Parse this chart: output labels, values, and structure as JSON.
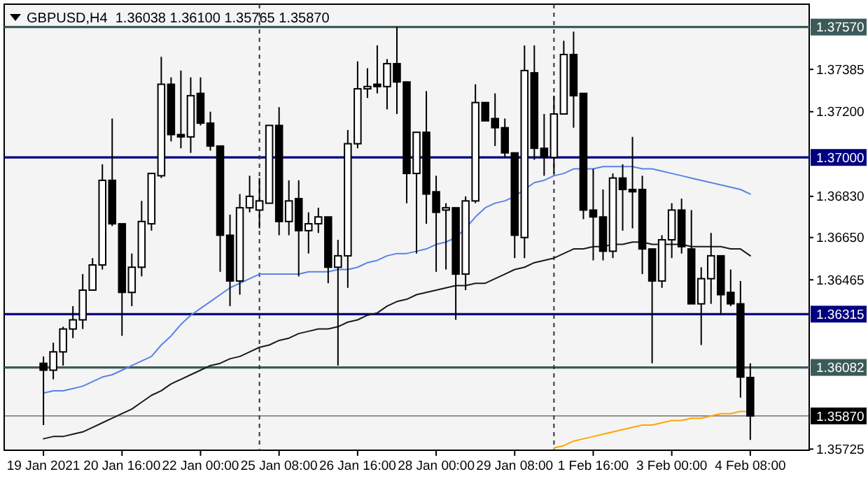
{
  "chart_data": {
    "type": "candlestick",
    "title": "GBPUSD,H4  1.36038 1.36100 1.35765 1.35870",
    "color": "#000000",
    "categories": [
      "19 Jan 2021",
      null,
      null,
      null,
      null,
      null,
      null,
      null,
      "20 Jan 16:00",
      null,
      null,
      null,
      null,
      null,
      null,
      null,
      "22 Jan 00:00",
      null,
      null,
      null,
      null,
      null,
      null,
      null,
      "25 Jan 08:00",
      null,
      null,
      null,
      null,
      null,
      null,
      null,
      "26 Jan 16:00",
      null,
      null,
      null,
      null,
      null,
      null,
      null,
      "28 Jan 00:00",
      null,
      null,
      null,
      null,
      null,
      null,
      null,
      "29 Jan 08:00",
      null,
      null,
      null,
      null,
      null,
      null,
      null,
      "1 Feb 16:00",
      null,
      null,
      null,
      null,
      null,
      null,
      null,
      "3 Feb 00:00",
      null,
      null,
      null,
      null,
      null,
      null,
      null,
      "4 Feb 08:00"
    ],
    "ohlc": [
      [
        1.361,
        1.3613,
        1.3583,
        1.3607
      ],
      [
        1.3607,
        1.3619,
        1.3603,
        1.3615
      ],
      [
        1.3615,
        1.3626,
        1.3609,
        1.3625
      ],
      [
        1.3625,
        1.3635,
        1.3621,
        1.3629
      ],
      [
        1.3629,
        1.3649,
        1.3625,
        1.3642
      ],
      [
        1.3642,
        1.3656,
        1.3642,
        1.3653
      ],
      [
        1.3653,
        1.3697,
        1.3651,
        1.369
      ],
      [
        1.369,
        1.3717,
        1.367,
        1.3671
      ],
      [
        1.3671,
        1.3671,
        1.3622,
        1.3641
      ],
      [
        1.3641,
        1.3658,
        1.3635,
        1.3652
      ],
      [
        1.3652,
        1.3681,
        1.3648,
        1.3672
      ],
      [
        1.3671,
        1.3693,
        1.3668,
        1.3693
      ],
      [
        1.3692,
        1.3744,
        1.3691,
        1.3732
      ],
      [
        1.3732,
        1.3735,
        1.3707,
        1.371
      ],
      [
        1.371,
        1.3738,
        1.3704,
        1.3709
      ],
      [
        1.3709,
        1.3735,
        1.3702,
        1.3727
      ],
      [
        1.3728,
        1.3735,
        1.3714,
        1.3715
      ],
      [
        1.3715,
        1.372,
        1.3703,
        1.3705
      ],
      [
        1.3705,
        1.3705,
        1.365,
        1.3666
      ],
      [
        1.3666,
        1.3675,
        1.3635,
        1.3646
      ],
      [
        1.3646,
        1.3684,
        1.364,
        1.3678
      ],
      [
        1.3678,
        1.3692,
        1.3676,
        1.3683
      ],
      [
        1.3677,
        1.3691,
        1.3669,
        1.3681
      ],
      [
        1.368,
        1.3714,
        1.368,
        1.3714
      ],
      [
        1.3714,
        1.3722,
        1.3666,
        1.3672
      ],
      [
        1.3672,
        1.369,
        1.3666,
        1.3681
      ],
      [
        1.3682,
        1.369,
        1.3648,
        1.3668
      ],
      [
        1.3668,
        1.3676,
        1.3658,
        1.3671
      ],
      [
        1.3671,
        1.3678,
        1.3667,
        1.3674
      ],
      [
        1.3674,
        1.3674,
        1.3645,
        1.3652
      ],
      [
        1.3652,
        1.3664,
        1.3609,
        1.3657
      ],
      [
        1.3657,
        1.3712,
        1.3643,
        1.3706
      ],
      [
        1.3706,
        1.3742,
        1.3704,
        1.373
      ],
      [
        1.373,
        1.3739,
        1.3726,
        1.3731
      ],
      [
        1.3732,
        1.3749,
        1.3728,
        1.3731
      ],
      [
        1.3731,
        1.3743,
        1.3721,
        1.3741
      ],
      [
        1.3741,
        1.3757,
        1.3719,
        1.3733
      ],
      [
        1.3733,
        1.3733,
        1.368,
        1.3693
      ],
      [
        1.3693,
        1.3711,
        1.3658,
        1.3711
      ],
      [
        1.3711,
        1.3729,
        1.3671,
        1.3684
      ],
      [
        1.3685,
        1.3692,
        1.365,
        1.3676
      ],
      [
        1.3677,
        1.368,
        1.3651,
        1.3678
      ],
      [
        1.3678,
        1.3678,
        1.3629,
        1.3649
      ],
      [
        1.3649,
        1.3683,
        1.3642,
        1.3681
      ],
      [
        1.3681,
        1.3732,
        1.368,
        1.3724
      ],
      [
        1.3724,
        1.3724,
        1.3716,
        1.3716
      ],
      [
        1.3717,
        1.3728,
        1.3705,
        1.3713
      ],
      [
        1.3713,
        1.3717,
        1.37,
        1.3702
      ],
      [
        1.3702,
        1.3702,
        1.3656,
        1.3666
      ],
      [
        1.3665,
        1.3749,
        1.3656,
        1.3738
      ],
      [
        1.3737,
        1.3749,
        1.3699,
        1.3704
      ],
      [
        1.3704,
        1.3719,
        1.3692,
        1.37
      ],
      [
        1.37,
        1.3727,
        1.3693,
        1.3719
      ],
      [
        1.3719,
        1.3751,
        1.3719,
        1.3745
      ],
      [
        1.3745,
        1.3755,
        1.3713,
        1.3727
      ],
      [
        1.3728,
        1.3728,
        1.3673,
        1.3677
      ],
      [
        1.3677,
        1.3695,
        1.3655,
        1.3674
      ],
      [
        1.3674,
        1.3686,
        1.3655,
        1.3659
      ],
      [
        1.3659,
        1.3693,
        1.3656,
        1.3691
      ],
      [
        1.3691,
        1.3697,
        1.3668,
        1.3686
      ],
      [
        1.3686,
        1.3709,
        1.3669,
        1.3685
      ],
      [
        1.3686,
        1.3692,
        1.3649,
        1.366
      ],
      [
        1.366,
        1.366,
        1.361,
        1.3646
      ],
      [
        1.3646,
        1.3666,
        1.3643,
        1.3664
      ],
      [
        1.3664,
        1.368,
        1.3656,
        1.3677
      ],
      [
        1.3677,
        1.3682,
        1.3658,
        1.3661
      ],
      [
        1.366,
        1.3677,
        1.3636,
        1.3636
      ],
      [
        1.3636,
        1.3652,
        1.3618,
        1.3647
      ],
      [
        1.3647,
        1.3667,
        1.3636,
        1.3657
      ],
      [
        1.3657,
        1.3657,
        1.3631,
        1.364
      ],
      [
        1.3641,
        1.3651,
        1.3635,
        1.3636
      ],
      [
        1.3636,
        1.3646,
        1.3595,
        1.3604
      ],
      [
        1.36038,
        1.361,
        1.35765,
        1.3587
      ]
    ],
    "series": [
      {
        "type": "line",
        "color": "#5b82e6",
        "values": [
          1.3597,
          1.3598,
          1.3598,
          1.3599,
          1.36,
          1.3602,
          1.3604,
          1.3605,
          1.3607,
          1.3609,
          1.3611,
          1.3613,
          1.3618,
          1.3622,
          1.3627,
          1.3631,
          1.3634,
          1.3637,
          1.364,
          1.3643,
          1.3645,
          1.3647,
          1.3649,
          1.3649,
          1.3649,
          1.3649,
          1.3649,
          1.365,
          1.365,
          1.365,
          1.3651,
          1.3651,
          1.3652,
          1.3654,
          1.3655,
          1.3657,
          1.3658,
          1.3658,
          1.3659,
          1.366,
          1.3662,
          1.3663,
          1.3665,
          1.3669,
          1.3674,
          1.3678,
          1.368,
          1.3681,
          1.3683,
          1.3686,
          1.3689,
          1.369,
          1.3692,
          1.3693,
          1.3695,
          1.3695,
          1.3695,
          1.3696,
          1.3696,
          1.3696,
          1.3696,
          1.3695,
          1.3695,
          1.3694,
          1.3693,
          1.3692,
          1.3691,
          1.369,
          1.3689,
          1.3688,
          1.3687,
          1.3686,
          1.3684
        ]
      },
      {
        "type": "line",
        "color": "#1a1a1a",
        "values": [
          1.3577,
          1.3578,
          1.3578,
          1.3579,
          1.358,
          1.3582,
          1.3584,
          1.3586,
          1.3588,
          1.359,
          1.3593,
          1.3596,
          1.3598,
          1.3601,
          1.3603,
          1.3605,
          1.3607,
          1.3609,
          1.361,
          1.3612,
          1.3613,
          1.3615,
          1.3617,
          1.3618,
          1.362,
          1.3621,
          1.3623,
          1.3624,
          1.3625,
          1.3625,
          1.3626,
          1.3628,
          1.3629,
          1.3631,
          1.3632,
          1.3635,
          1.3637,
          1.3638,
          1.364,
          1.3641,
          1.3642,
          1.3643,
          1.3644,
          1.3644,
          1.3645,
          1.3645,
          1.3647,
          1.3649,
          1.3651,
          1.3652,
          1.3654,
          1.3655,
          1.3656,
          1.3658,
          1.366,
          1.366,
          1.3661,
          1.3661,
          1.3662,
          1.3662,
          1.3663,
          1.3663,
          1.3662,
          1.3662,
          1.3662,
          1.3662,
          1.3661,
          1.3661,
          1.3661,
          1.3661,
          1.366,
          1.366,
          1.3657
        ]
      },
      {
        "type": "line",
        "color": "#ffa500",
        "values": [
          null,
          null,
          null,
          null,
          null,
          null,
          null,
          null,
          null,
          null,
          null,
          null,
          null,
          null,
          null,
          null,
          null,
          null,
          null,
          null,
          null,
          null,
          null,
          null,
          null,
          null,
          null,
          null,
          null,
          null,
          null,
          null,
          null,
          null,
          null,
          null,
          null,
          null,
          null,
          null,
          null,
          null,
          null,
          null,
          null,
          null,
          null,
          null,
          null,
          null,
          null,
          null,
          1.3573,
          1.3574,
          1.3576,
          1.3577,
          1.3578,
          1.3579,
          1.358,
          1.3581,
          1.3582,
          1.3583,
          1.3583,
          1.3584,
          1.3585,
          1.3585,
          1.3586,
          1.3586,
          1.3587,
          1.3588,
          1.3588,
          1.3589,
          1.3589
        ]
      }
    ],
    "ylim": [
      1.3572,
      1.3767
    ],
    "yticks": [
      {
        "value": 1.37385,
        "label": "1.37385"
      },
      {
        "value": 1.372,
        "label": "1.37200"
      },
      {
        "value": 1.3683,
        "label": "1.36830"
      },
      {
        "value": 1.3665,
        "label": "1.36650"
      },
      {
        "value": 1.36465,
        "label": "1.36465"
      },
      {
        "value": 1.35725,
        "label": "1.35725"
      }
    ],
    "ref_lines": [
      {
        "axis": "y",
        "value": 1.3757,
        "label": "1.37570",
        "color": "#3d5a5a"
      },
      {
        "axis": "y",
        "value": 1.37,
        "label": "1.37000",
        "color": "#000080"
      },
      {
        "axis": "y",
        "value": 1.36315,
        "label": "1.36315",
        "color": "#000080"
      },
      {
        "axis": "y",
        "value": 1.36082,
        "label": "1.36082",
        "color": "#3d5a5a"
      },
      {
        "axis": "y",
        "value": 1.3587,
        "label": "1.35870",
        "color": "#000000"
      }
    ]
  }
}
